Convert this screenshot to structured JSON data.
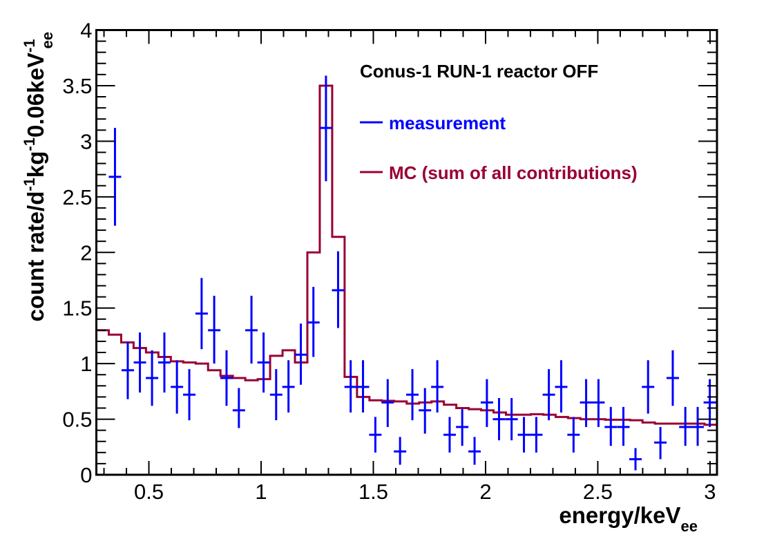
{
  "chart_data": {
    "type": "histogram-with-errorbars",
    "title": "Conus-1 RUN-1 reactor OFF",
    "xlabel": "energy/keV",
    "xlabel_sub": "ee",
    "ylabel": "count rate/d",
    "ylabel_parts": [
      "count rate/d",
      "-1",
      "kg",
      "-1",
      "0.06keV",
      "-1",
      "ee"
    ],
    "xlim": [
      0.266,
      3.031
    ],
    "ylim": [
      0,
      4
    ],
    "grid": false,
    "x_ticks": [
      0.5,
      1,
      1.5,
      2,
      2.5,
      3
    ],
    "x_tick_labels": [
      "0.5",
      "1",
      "1.5",
      "2",
      "2.5",
      "3"
    ],
    "y_ticks": [
      0,
      0.5,
      1,
      1.5,
      2,
      2.5,
      3,
      3.5,
      4
    ],
    "y_tick_labels": [
      "0",
      "0.5",
      "1",
      "1.5",
      "2",
      "2.5",
      "3",
      "3.5",
      "4"
    ],
    "legend": {
      "placement": "top-right",
      "entries": [
        {
          "label": "measurement",
          "color": "#0000ff"
        },
        {
          "label": "MC (sum of all contributions)",
          "color": "#990033"
        }
      ]
    },
    "series": [
      {
        "name": "measurement",
        "type": "errorbar",
        "color": "#0000ff",
        "x": [
          0.349,
          0.406,
          0.46,
          0.514,
          0.569,
          0.625,
          0.68,
          0.735,
          0.791,
          0.846,
          0.901,
          0.957,
          1.011,
          1.067,
          1.122,
          1.177,
          1.233,
          1.289,
          1.343,
          1.399,
          1.454,
          1.509,
          1.564,
          1.619,
          1.674,
          1.73,
          1.785,
          1.84,
          1.896,
          1.951,
          2.006,
          2.06,
          2.116,
          2.171,
          2.226,
          2.282,
          2.337,
          2.392,
          2.448,
          2.503,
          2.558,
          2.614,
          2.668,
          2.724,
          2.779,
          2.834,
          2.89,
          2.945,
          2.999
        ],
        "y": [
          2.68,
          0.94,
          1.01,
          0.87,
          1.01,
          0.79,
          0.72,
          1.45,
          1.3,
          0.87,
          0.58,
          1.3,
          1.01,
          0.72,
          0.79,
          1.08,
          1.37,
          3.12,
          1.66,
          0.79,
          0.79,
          0.36,
          0.65,
          0.21,
          0.72,
          0.58,
          0.79,
          0.36,
          0.43,
          0.21,
          0.65,
          0.5,
          0.5,
          0.36,
          0.36,
          0.72,
          0.79,
          0.36,
          0.65,
          0.65,
          0.43,
          0.43,
          0.14,
          0.79,
          0.29,
          0.87,
          0.43,
          0.43,
          0.65
        ],
        "y_err_low": [
          2.24,
          0.68,
          0.74,
          0.62,
          0.74,
          0.55,
          0.49,
          1.13,
          1.0,
          0.62,
          0.42,
          1.0,
          0.74,
          0.49,
          0.56,
          0.81,
          1.06,
          2.64,
          1.32,
          0.56,
          0.56,
          0.2,
          0.43,
          0.09,
          0.49,
          0.37,
          0.56,
          0.2,
          0.26,
          0.09,
          0.43,
          0.31,
          0.31,
          0.2,
          0.2,
          0.49,
          0.56,
          0.2,
          0.43,
          0.43,
          0.26,
          0.26,
          0.04,
          0.55,
          0.14,
          0.62,
          0.26,
          0.26,
          0.43
        ],
        "y_err_high": [
          3.12,
          1.2,
          1.28,
          1.12,
          1.28,
          1.03,
          0.95,
          1.77,
          1.61,
          1.12,
          0.78,
          1.61,
          1.28,
          0.95,
          1.03,
          1.36,
          1.69,
          3.59,
          2.01,
          1.03,
          1.03,
          0.52,
          0.86,
          0.34,
          0.95,
          0.78,
          1.03,
          0.52,
          0.59,
          0.34,
          0.86,
          0.69,
          0.69,
          0.52,
          0.52,
          0.95,
          1.03,
          0.52,
          0.86,
          0.86,
          0.61,
          0.61,
          0.24,
          1.03,
          0.43,
          1.12,
          0.61,
          0.61,
          0.86
        ]
      },
      {
        "name": "MC (sum of all contributions)",
        "type": "step-histogram",
        "color": "#990033",
        "bin_start": 0.266,
        "bin_width": 0.0553,
        "left_edge_value": 1.64,
        "values": [
          1.3,
          1.26,
          1.19,
          1.14,
          1.1,
          1.06,
          1.02,
          1.01,
          1.0,
          0.94,
          0.89,
          0.87,
          0.85,
          0.86,
          1.07,
          1.12,
          1.01,
          2.0,
          3.5,
          2.14,
          0.88,
          0.7,
          0.67,
          0.665,
          0.66,
          0.64,
          0.65,
          0.66,
          0.63,
          0.6,
          0.59,
          0.58,
          0.56,
          0.54,
          0.54,
          0.545,
          0.54,
          0.52,
          0.51,
          0.5,
          0.5,
          0.495,
          0.495,
          0.49,
          0.47,
          0.46,
          0.46,
          0.46,
          0.46,
          0.45
        ]
      }
    ]
  }
}
